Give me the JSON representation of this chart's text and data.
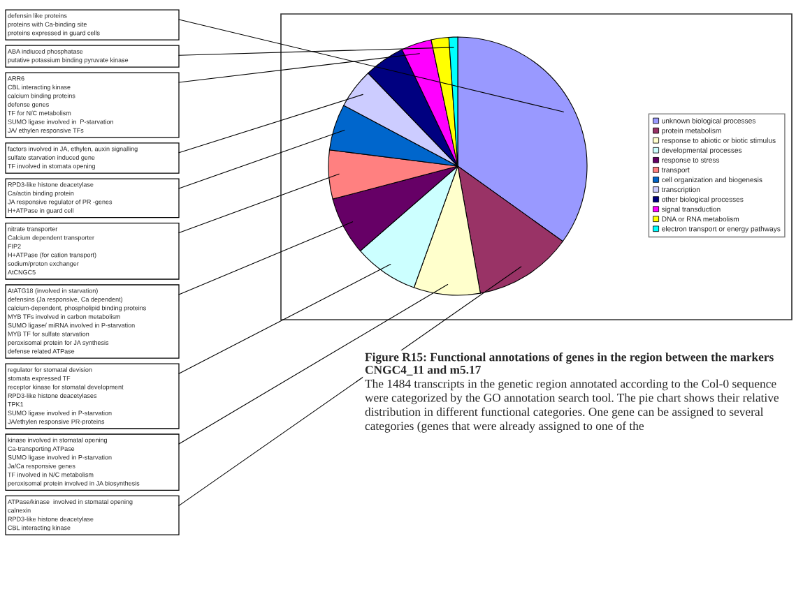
{
  "chart_data": {
    "type": "pie",
    "title": "Figure R15: Functional annotations of genes in the region between the markers CNGC4_11 and m5.17",
    "subtitle": "The 1484 transcripts in the genetic region annotated according to the Col-0 sequence were categorized by the GO annotation search tool. The pie chart shows their relative distribution in different functional categories. One gene can be assigned to several categories (genes that were already assigned to one of the",
    "categories": [
      "unknown biological processes",
      "protein metabolism",
      "response to abiotic or biotic stimulus",
      "developmental processes",
      "response to stress",
      "transport",
      "cell organization and biogenesis",
      "transcription",
      "other biological processes",
      "signal transduction",
      "DNA or RNA metabolism",
      "electron transport or energy pathways"
    ],
    "values": [
      34.9,
      12.3,
      8.3,
      8.1,
      7.3,
      6.1,
      5.8,
      5.0,
      5.1,
      3.8,
      2.2,
      1.1
    ],
    "colors": [
      "#9999ff",
      "#993366",
      "#ffffcc",
      "#ccffff",
      "#660066",
      "#ff8080",
      "#0066cc",
      "#ccccff",
      "#000080",
      "#ff00ff",
      "#ffff00",
      "#00ffff"
    ],
    "legend": "right",
    "annotations": [
      {
        "text": "defensin like proteins\nproteins with Ca-binding site\nproteins expressed in guard cells",
        "x": "unknown biological processes"
      },
      {
        "text": "ABA indiuced phosphatase\nputative potassium binding pyruvate kinase",
        "x": "electron transport or energy pathways"
      },
      {
        "text": "ARR6\nCBL interacting kinase\ncalcium binding proteins\ndefense genes\nTF for N/C metabolism\nSUMO ligase involved in  P-starvation\nJA/ ethylen responsive TFs",
        "x": "signal transduction"
      },
      {
        "text": "factors involved in JA, ethylen, auxin signalling\nsulfate starvation induced gene\nTF involved in stomata opening",
        "x": "transcription"
      },
      {
        "text": "RPD3-like histone deacetylase\nCa/actin binding protein\nJA responsive regulator of PR -genes\nH+ATPase in guard cell",
        "x": "cell organization and biogenesis"
      },
      {
        "text": "nitrate transporter\nCalcium dependent transporter\nFIP2\nH+ATPase (for cation transport)\nsodium/proton exchanger\nAtCNGC5",
        "x": "transport"
      },
      {
        "text": "AtATG18 (involved in starvation)\ndefensins (Ja responsive, Ca dependent)\ncalcium-dependent, phospholipid binding proteins\nMYB TFs involved in carbon metabolism\nSUMO ligase/ miRNA involved in P-starvation\nMYB TF for sulfate starvation\nperoxisomal protein for JA synthesis\ndefense related ATPase",
        "x": "response to stress"
      },
      {
        "text": "regulator for stomatal devision\nstomata expressed TF\nreceptor kinase for stomatal development\nRPD3-like histone deacetylases\nTPK1\nSUMO ligase involved in P-starvation\nJA/ethylen responsive PR-proteins",
        "x": "developmental processes"
      },
      {
        "text": "kinase involved in stomatal opening\nCa-transporting ATPase\nSUMO ligase involved in P-starvation\nJa/Ca responsive genes\nTF involved in N/C metabolism\nperoxisomal protein involved in JA biosynthesis",
        "x": "response to abiotic or biotic stimulus"
      },
      {
        "text": "ATPase/kinase  involved in stomatal opening\ncalnexin\nRPD3-like histone deacetylase\nCBL interacting kinase",
        "x": "protein metabolism"
      }
    ]
  }
}
